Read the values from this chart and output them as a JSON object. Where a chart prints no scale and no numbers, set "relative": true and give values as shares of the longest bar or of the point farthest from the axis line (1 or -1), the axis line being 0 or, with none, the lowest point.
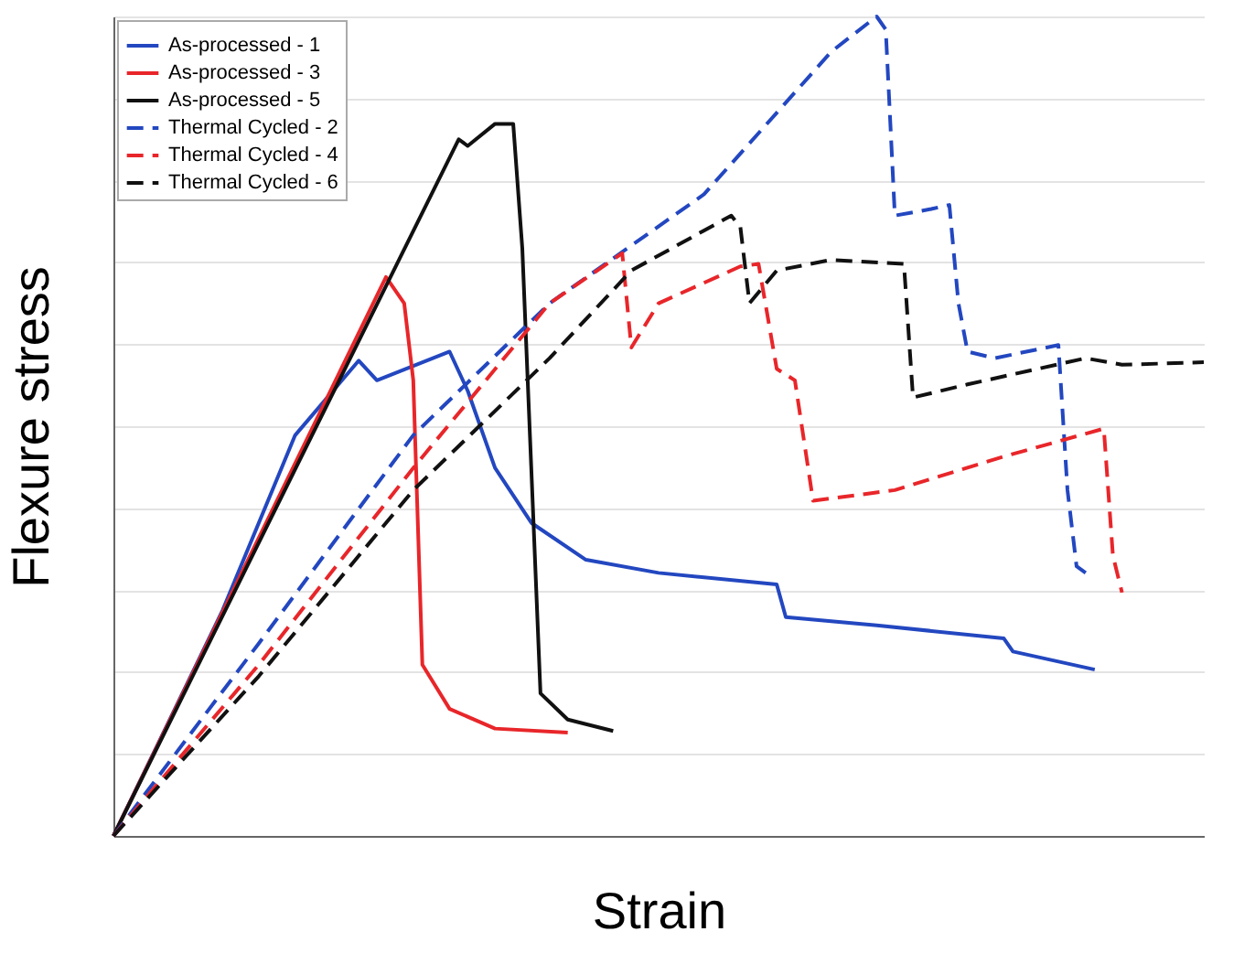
{
  "chart_data": {
    "type": "line",
    "relative": true,
    "xlabel": "Strain",
    "ylabel": "Flexure stress",
    "legend": "top left",
    "grid": "y",
    "categories": [
      null,
      null,
      null,
      null,
      null,
      null,
      null,
      null,
      null,
      null,
      null,
      null,
      null,
      null,
      null,
      null,
      null,
      null,
      null,
      null,
      null,
      null,
      null,
      null,
      null,
      null,
      null,
      null,
      null,
      null,
      null,
      null,
      null,
      null,
      null,
      null,
      null,
      null,
      null,
      null,
      null,
      null,
      null,
      null,
      null,
      null,
      null,
      null,
      null,
      null,
      null,
      null,
      null,
      null,
      null,
      null,
      null,
      null,
      null,
      null,
      null,
      null,
      null,
      null,
      null,
      null,
      null,
      null,
      null,
      null,
      null,
      null,
      null,
      null,
      null,
      null,
      null,
      null,
      null,
      null,
      null,
      null,
      null,
      null,
      null,
      null,
      null,
      null,
      null,
      null,
      null,
      null,
      null,
      null,
      null,
      null,
      null,
      null,
      null,
      null,
      null,
      null,
      null,
      null,
      null,
      null,
      null,
      null,
      null,
      null,
      null,
      null,
      null,
      null,
      null,
      null,
      null,
      null,
      null,
      null,
      null
    ],
    "series": [
      {
        "name": "As-processed - 1",
        "color": "#2347c0",
        "line_style": "solid",
        "values": [
          0,
          null,
          null,
          null,
          null,
          null,
          null,
          null,
          null,
          null,
          null,
          null,
          0.275,
          null,
          null,
          null,
          null,
          null,
          null,
          null,
          0.489,
          null,
          null,
          null,
          null,
          null,
          null,
          0.58,
          null,
          0.556,
          null,
          null,
          null,
          null,
          null,
          null,
          null,
          0.591,
          null,
          0.543,
          null,
          null,
          0.449,
          null,
          null,
          null,
          0.382,
          null,
          null,
          null,
          null,
          null,
          0.337,
          null,
          null,
          null,
          null,
          null,
          null,
          null,
          0.321,
          null,
          null,
          null,
          null,
          null,
          null,
          null,
          null,
          null,
          null,
          null,
          null,
          0.307,
          0.267,
          null,
          null,
          null,
          null,
          null,
          null,
          null,
          null,
          null,
          0.257,
          null,
          null,
          null,
          null,
          null,
          null,
          null,
          null,
          null,
          null,
          null,
          null,
          null,
          0.241,
          0.225,
          null,
          null,
          null,
          null,
          null,
          null,
          null,
          null,
          0.203,
          null,
          null,
          null,
          null,
          null,
          null,
          null,
          null,
          null,
          null,
          null,
          null
        ]
      },
      {
        "name": "As-processed - 3",
        "color": "#e8262a",
        "line_style": "solid",
        "values": [
          0,
          null,
          null,
          null,
          null,
          null,
          null,
          null,
          null,
          null,
          null,
          null,
          null,
          null,
          null,
          null,
          null,
          null,
          null,
          null,
          null,
          null,
          null,
          null,
          null,
          null,
          null,
          null,
          null,
          null,
          0.682,
          null,
          0.65,
          0.556,
          0.209,
          null,
          null,
          0.155,
          null,
          null,
          null,
          null,
          0.131,
          null,
          null,
          null,
          null,
          null,
          null,
          null,
          0.126,
          null,
          null,
          null,
          null,
          null,
          null,
          null,
          null,
          null,
          null,
          null,
          null,
          null,
          null,
          null,
          null,
          null,
          null,
          null,
          null,
          null,
          null,
          null,
          null,
          null,
          null,
          null,
          null,
          null,
          null,
          null,
          null,
          null,
          null,
          null,
          null,
          null,
          null,
          null,
          null,
          null,
          null,
          null,
          null,
          null,
          null,
          null,
          null,
          null,
          null,
          null,
          null,
          null,
          null,
          null,
          null,
          null,
          null,
          null,
          null,
          null,
          null,
          null,
          null,
          null,
          null,
          null,
          null,
          null,
          null
        ]
      },
      {
        "name": "As-processed - 5",
        "color": "#111111",
        "line_style": "solid",
        "values": [
          0,
          null,
          null,
          null,
          null,
          null,
          null,
          null,
          null,
          null,
          null,
          null,
          null,
          null,
          null,
          null,
          null,
          null,
          null,
          null,
          null,
          null,
          null,
          null,
          null,
          null,
          null,
          null,
          null,
          null,
          null,
          null,
          null,
          null,
          null,
          null,
          null,
          null,
          0.85,
          0.842,
          null,
          null,
          0.869,
          null,
          0.869,
          0.717,
          null,
          0.174,
          null,
          null,
          0.142,
          null,
          null,
          null,
          null,
          0.128,
          null,
          null,
          null,
          null,
          null,
          null,
          null,
          null,
          null,
          null,
          null,
          null,
          null,
          null,
          null,
          null,
          null,
          null,
          null,
          null,
          null,
          null,
          null,
          null,
          null,
          null,
          null,
          null,
          null,
          null,
          null,
          null,
          null,
          null,
          null,
          null,
          null,
          null,
          null,
          null,
          null,
          null,
          null,
          null,
          null,
          null,
          null,
          null,
          null,
          null,
          null,
          null,
          null,
          null,
          null,
          null,
          null,
          null,
          null,
          null,
          null,
          null,
          null,
          null,
          null
        ]
      },
      {
        "name": "Thermal Cycled - 2",
        "color": "#2347c0",
        "line_style": "dashed",
        "values": [
          0,
          null,
          null,
          null,
          null,
          null,
          null,
          null,
          null,
          null,
          null,
          null,
          null,
          null,
          null,
          null,
          0.235,
          null,
          null,
          null,
          null,
          null,
          null,
          null,
          null,
          null,
          null,
          null,
          null,
          null,
          null,
          null,
          null,
          0.489,
          null,
          null,
          null,
          null,
          null,
          null,
          null,
          null,
          null,
          null,
          null,
          null,
          null,
          null,
          0.65,
          null,
          null,
          null,
          null,
          null,
          null,
          null,
          null,
          null,
          null,
          null,
          null,
          null,
          null,
          null,
          null,
          0.783,
          null,
          null,
          null,
          null,
          null,
          null,
          null,
          null,
          null,
          null,
          null,
          null,
          null,
          0.957,
          null,
          null,
          null,
          null,
          1,
          0.984,
          0.757,
          null,
          null,
          null,
          0.765,
          null,
          0.77,
          0.65,
          0.591,
          null,
          null,
          0.583,
          null,
          null,
          null,
          null,
          null,
          null,
          0.599,
          0.422,
          0.329,
          0.321,
          null,
          null,
          null,
          null,
          null,
          null,
          null,
          null,
          null,
          null,
          null,
          null,
          null
        ]
      },
      {
        "name": "Thermal Cycled - 4",
        "color": "#e8262a",
        "line_style": "dashed",
        "values": [
          0,
          null,
          null,
          null,
          null,
          null,
          null,
          null,
          null,
          null,
          null,
          null,
          null,
          null,
          null,
          null,
          0.209,
          null,
          null,
          null,
          null,
          null,
          null,
          null,
          null,
          null,
          null,
          null,
          null,
          null,
          null,
          null,
          null,
          0.449,
          null,
          null,
          null,
          null,
          null,
          null,
          null,
          null,
          null,
          null,
          null,
          null,
          null,
          null,
          0.65,
          null,
          null,
          null,
          null,
          null,
          null,
          null,
          0.711,
          0.596,
          null,
          null,
          0.65,
          null,
          null,
          null,
          null,
          null,
          null,
          null,
          null,
          0.695,
          null,
          0.698,
          null,
          0.57,
          null,
          0.556,
          null,
          0.409,
          null,
          null,
          null,
          null,
          null,
          null,
          null,
          null,
          0.422,
          null,
          null,
          null,
          null,
          null,
          null,
          null,
          null,
          null,
          null,
          null,
          0.463,
          null,
          null,
          null,
          null,
          null,
          null,
          null,
          null,
          null,
          null,
          0.497,
          0.342,
          0.297,
          null,
          null,
          null,
          null,
          null,
          null,
          null,
          null,
          null
        ]
      },
      {
        "name": "Thermal Cycled - 6",
        "color": "#111111",
        "line_style": "dashed",
        "values": [
          0,
          null,
          null,
          null,
          null,
          null,
          null,
          null,
          null,
          null,
          null,
          null,
          null,
          null,
          null,
          null,
          0.195,
          null,
          null,
          null,
          null,
          null,
          null,
          null,
          null,
          null,
          null,
          null,
          null,
          null,
          null,
          null,
          null,
          0.422,
          null,
          null,
          null,
          null,
          null,
          null,
          null,
          null,
          null,
          null,
          null,
          null,
          null,
          null,
          0.583,
          null,
          null,
          null,
          null,
          null,
          null,
          null,
          null,
          0.69,
          null,
          null,
          null,
          null,
          null,
          null,
          null,
          null,
          null,
          null,
          0.757,
          0.743,
          0.65,
          null,
          null,
          0.69,
          null,
          null,
          null,
          null,
          null,
          0.703,
          null,
          null,
          null,
          null,
          null,
          null,
          null,
          0.698,
          0.535,
          null,
          null,
          null,
          null,
          null,
          0.551,
          null,
          null,
          null,
          null,
          null,
          null,
          null,
          null,
          null,
          null,
          null,
          null,
          0.583,
          null,
          null,
          null,
          0.575,
          null,
          null,
          null,
          null,
          null,
          null,
          null,
          null,
          0.578
        ]
      }
    ]
  }
}
